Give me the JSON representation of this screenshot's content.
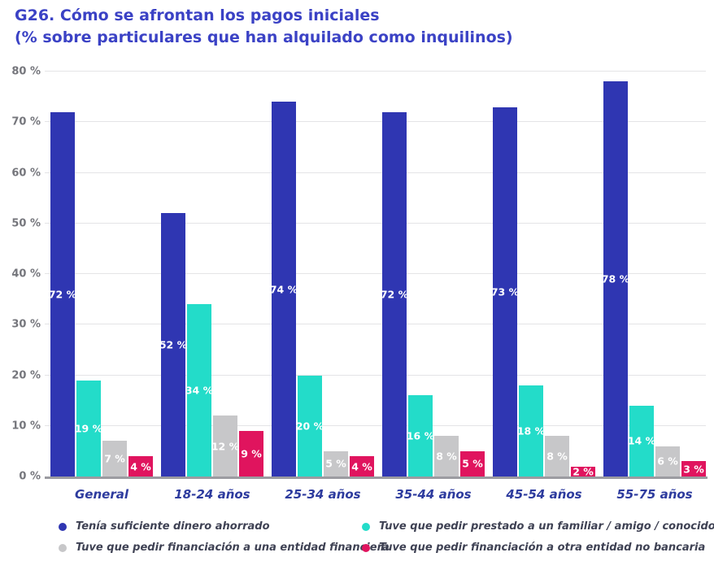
{
  "title": {
    "line1": "G26. Cómo se afrontan los pagos iniciales",
    "line2": "(% sobre particulares que han alquilado como inquilinos)"
  },
  "theme": {
    "title": "#3b42c5",
    "ytick": "#75767c",
    "xtick": "#2d3b9e",
    "legendText": "#3f4254",
    "gridline": "#e4e4e6",
    "axisline": "#9b9ba1"
  },
  "chart_data": {
    "type": "bar",
    "title": "G26. Cómo se afrontan los pagos iniciales (% sobre particulares que han alquilado como inquilinos)",
    "categories": [
      "General",
      "18-24 años",
      "25-34 años",
      "35-44 años",
      "45-54 años",
      "55-75 años"
    ],
    "series": [
      {
        "name": "Tenía suficiente dinero ahorrado",
        "color": "#2f36b2",
        "values": [
          72,
          52,
          74,
          72,
          73,
          78
        ]
      },
      {
        "name": "Tuve que pedir prestado a un familiar / amigo / conocido",
        "color": "#23dcc9",
        "values": [
          19,
          34,
          20,
          16,
          18,
          14
        ]
      },
      {
        "name": "Tuve que pedir financiación a una entidad financiera",
        "color": "#c7c7c9",
        "values": [
          7,
          12,
          5,
          8,
          8,
          6
        ]
      },
      {
        "name": "Tuve que pedir financiación a otra entidad no bancaria",
        "color": "#e0145e",
        "values": [
          4,
          9,
          4,
          5,
          2,
          3
        ]
      }
    ],
    "xlabel": "",
    "ylabel": "",
    "ylim": [
      0,
      80
    ],
    "ytick_step": 10,
    "ytick_suffix": " %",
    "value_label_suffix": " %",
    "value_labels": "white, bold, centered inside bars",
    "grid": true,
    "legend_position": "bottom"
  }
}
